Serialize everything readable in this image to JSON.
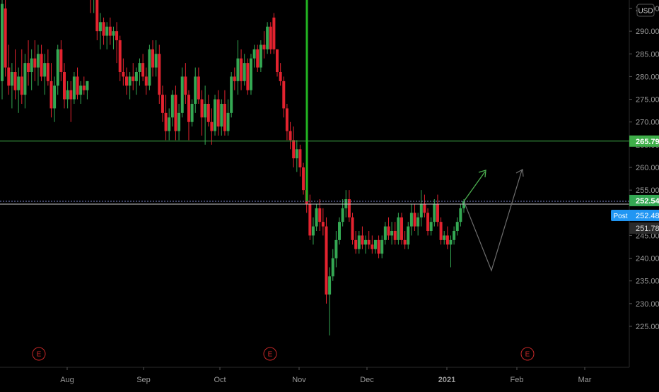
{
  "currency": "USD",
  "chart_data": {
    "type": "candlestick",
    "y_ticks": [
      "225.00",
      "230.00",
      "235.00",
      "240.00",
      "245.00",
      "250.00",
      "255.00",
      "260.00",
      "265.00",
      "270.00",
      "275.00",
      "280.00",
      "285.00",
      "290.00",
      "295.00"
    ],
    "y_range": [
      219.5,
      301.8
    ],
    "x_labels": [
      "Aug",
      "Sep",
      "Oct",
      "Nov",
      "Dec",
      "2021",
      "Feb",
      "Mar"
    ],
    "price_labels": {
      "resistance": "265.79",
      "last": "252.54",
      "post_tag": "Post",
      "post": "252.48",
      "prev": "251.78"
    },
    "earnings_marker": "E",
    "candles": [
      {
        "o": 279,
        "h": 300,
        "l": 275,
        "c": 296
      },
      {
        "o": 295,
        "h": 297,
        "l": 280,
        "c": 282
      },
      {
        "o": 282,
        "h": 287,
        "l": 276,
        "c": 278
      },
      {
        "o": 278,
        "h": 283,
        "l": 273,
        "c": 281
      },
      {
        "o": 281,
        "h": 286,
        "l": 275,
        "c": 277
      },
      {
        "o": 277,
        "h": 282,
        "l": 272,
        "c": 280
      },
      {
        "o": 280,
        "h": 286,
        "l": 274,
        "c": 276
      },
      {
        "o": 276,
        "h": 285,
        "l": 273,
        "c": 283
      },
      {
        "o": 283,
        "h": 288,
        "l": 278,
        "c": 281
      },
      {
        "o": 281,
        "h": 286,
        "l": 277,
        "c": 284
      },
      {
        "o": 284,
        "h": 288,
        "l": 279,
        "c": 282
      },
      {
        "o": 282,
        "h": 287,
        "l": 278,
        "c": 285
      },
      {
        "o": 285,
        "h": 287,
        "l": 279,
        "c": 280
      },
      {
        "o": 280,
        "h": 285,
        "l": 276,
        "c": 283
      },
      {
        "o": 283,
        "h": 286,
        "l": 278,
        "c": 279
      },
      {
        "o": 279,
        "h": 283,
        "l": 271,
        "c": 273
      },
      {
        "o": 273,
        "h": 280,
        "l": 270,
        "c": 278
      },
      {
        "o": 278,
        "h": 287,
        "l": 276,
        "c": 286
      },
      {
        "o": 286,
        "h": 288,
        "l": 279,
        "c": 281
      },
      {
        "o": 281,
        "h": 283,
        "l": 273,
        "c": 275
      },
      {
        "o": 275,
        "h": 279,
        "l": 273,
        "c": 277
      },
      {
        "o": 277,
        "h": 279,
        "l": 270,
        "c": 275
      },
      {
        "o": 275,
        "h": 281,
        "l": 274,
        "c": 280
      },
      {
        "o": 280,
        "h": 282,
        "l": 275,
        "c": 276
      },
      {
        "o": 276,
        "h": 279,
        "l": 274,
        "c": 278
      },
      {
        "o": 278,
        "h": 280,
        "l": 276,
        "c": 277
      },
      {
        "o": 277,
        "h": 279,
        "l": 275,
        "c": 279
      },
      {
        "o": 300,
        "h": 301,
        "l": 294,
        "c": 297
      },
      {
        "o": 297,
        "h": 299,
        "l": 294,
        "c": 298
      },
      {
        "o": 298,
        "h": 299,
        "l": 288,
        "c": 290
      },
      {
        "o": 290,
        "h": 294,
        "l": 286,
        "c": 292
      },
      {
        "o": 292,
        "h": 293,
        "l": 287,
        "c": 289
      },
      {
        "o": 289,
        "h": 292,
        "l": 286,
        "c": 291
      },
      {
        "o": 291,
        "h": 293,
        "l": 287,
        "c": 289
      },
      {
        "o": 289,
        "h": 291,
        "l": 286,
        "c": 290
      },
      {
        "o": 290,
        "h": 292,
        "l": 283,
        "c": 288
      },
      {
        "o": 288,
        "h": 289,
        "l": 279,
        "c": 281
      },
      {
        "o": 281,
        "h": 284,
        "l": 278,
        "c": 280
      },
      {
        "o": 280,
        "h": 282,
        "l": 276,
        "c": 278
      },
      {
        "o": 278,
        "h": 281,
        "l": 275,
        "c": 280
      },
      {
        "o": 280,
        "h": 283,
        "l": 277,
        "c": 279
      },
      {
        "o": 279,
        "h": 282,
        "l": 276,
        "c": 281
      },
      {
        "o": 281,
        "h": 284,
        "l": 278,
        "c": 283
      },
      {
        "o": 283,
        "h": 285,
        "l": 279,
        "c": 280
      },
      {
        "o": 280,
        "h": 282,
        "l": 276,
        "c": 278
      },
      {
        "o": 278,
        "h": 287,
        "l": 277,
        "c": 286
      },
      {
        "o": 286,
        "h": 288,
        "l": 280,
        "c": 282
      },
      {
        "o": 282,
        "h": 288,
        "l": 280,
        "c": 285
      },
      {
        "o": 285,
        "h": 287,
        "l": 274,
        "c": 276
      },
      {
        "o": 276,
        "h": 278,
        "l": 270,
        "c": 272
      },
      {
        "o": 272,
        "h": 276,
        "l": 266,
        "c": 268
      },
      {
        "o": 268,
        "h": 273,
        "l": 266,
        "c": 271
      },
      {
        "o": 271,
        "h": 277,
        "l": 269,
        "c": 276
      },
      {
        "o": 276,
        "h": 278,
        "l": 266,
        "c": 268
      },
      {
        "o": 268,
        "h": 274,
        "l": 266,
        "c": 272
      },
      {
        "o": 272,
        "h": 282,
        "l": 271,
        "c": 280
      },
      {
        "o": 280,
        "h": 283,
        "l": 274,
        "c": 276
      },
      {
        "o": 276,
        "h": 277,
        "l": 266,
        "c": 270
      },
      {
        "o": 270,
        "h": 275,
        "l": 269,
        "c": 274
      },
      {
        "o": 274,
        "h": 282,
        "l": 272,
        "c": 280
      },
      {
        "o": 280,
        "h": 282,
        "l": 274,
        "c": 275
      },
      {
        "o": 275,
        "h": 277,
        "l": 267,
        "c": 271
      },
      {
        "o": 271,
        "h": 278,
        "l": 265,
        "c": 274
      },
      {
        "o": 274,
        "h": 276,
        "l": 269,
        "c": 270
      },
      {
        "o": 270,
        "h": 273,
        "l": 265,
        "c": 268
      },
      {
        "o": 268,
        "h": 276,
        "l": 267,
        "c": 275
      },
      {
        "o": 275,
        "h": 277,
        "l": 267,
        "c": 269
      },
      {
        "o": 269,
        "h": 275,
        "l": 267,
        "c": 274
      },
      {
        "o": 274,
        "h": 277,
        "l": 267,
        "c": 268
      },
      {
        "o": 268,
        "h": 275,
        "l": 267,
        "c": 272
      },
      {
        "o": 272,
        "h": 281,
        "l": 271,
        "c": 280
      },
      {
        "o": 280,
        "h": 282,
        "l": 277,
        "c": 279
      },
      {
        "o": 279,
        "h": 288,
        "l": 276,
        "c": 284
      },
      {
        "o": 284,
        "h": 286,
        "l": 277,
        "c": 279
      },
      {
        "o": 279,
        "h": 285,
        "l": 278,
        "c": 283
      },
      {
        "o": 283,
        "h": 284,
        "l": 276,
        "c": 277
      },
      {
        "o": 277,
        "h": 285,
        "l": 276,
        "c": 284
      },
      {
        "o": 284,
        "h": 287,
        "l": 282,
        "c": 286
      },
      {
        "o": 286,
        "h": 287,
        "l": 281,
        "c": 282
      },
      {
        "o": 282,
        "h": 288,
        "l": 281,
        "c": 287
      },
      {
        "o": 287,
        "h": 290,
        "l": 284,
        "c": 286
      },
      {
        "o": 286,
        "h": 292,
        "l": 285,
        "c": 291
      },
      {
        "o": 291,
        "h": 292,
        "l": 285,
        "c": 286
      },
      {
        "o": 293,
        "h": 294,
        "l": 285,
        "c": 286
      },
      {
        "o": 286,
        "h": 286,
        "l": 280,
        "c": 281
      },
      {
        "o": 281,
        "h": 283,
        "l": 278,
        "c": 279
      },
      {
        "o": 279,
        "h": 280,
        "l": 271,
        "c": 273
      },
      {
        "o": 273,
        "h": 274,
        "l": 266,
        "c": 268
      },
      {
        "o": 268,
        "h": 270,
        "l": 264,
        "c": 266
      },
      {
        "o": 266,
        "h": 269,
        "l": 260,
        "c": 262
      },
      {
        "o": 262,
        "h": 266,
        "l": 259,
        "c": 264
      },
      {
        "o": 264,
        "h": 265,
        "l": 258,
        "c": 260
      },
      {
        "o": 260,
        "h": 261,
        "l": 254,
        "c": 255
      },
      {
        "o": 255,
        "h": 257,
        "l": 250,
        "c": 252
      },
      {
        "o": 252,
        "h": 254,
        "l": 244,
        "c": 245
      },
      {
        "o": 245,
        "h": 249,
        "l": 243,
        "c": 247
      },
      {
        "o": 247,
        "h": 252,
        "l": 246,
        "c": 251
      },
      {
        "o": 251,
        "h": 253,
        "l": 246,
        "c": 248
      },
      {
        "o": 248,
        "h": 251,
        "l": 245,
        "c": 247
      },
      {
        "o": 247,
        "h": 249,
        "l": 230,
        "c": 232
      },
      {
        "o": 232,
        "h": 238,
        "l": 223,
        "c": 236
      },
      {
        "o": 236,
        "h": 242,
        "l": 235,
        "c": 240
      },
      {
        "o": 240,
        "h": 246,
        "l": 238,
        "c": 244
      },
      {
        "o": 244,
        "h": 249,
        "l": 243,
        "c": 248
      },
      {
        "o": 248,
        "h": 253,
        "l": 247,
        "c": 251
      },
      {
        "o": 251,
        "h": 255,
        "l": 249,
        "c": 253
      },
      {
        "o": 253,
        "h": 255,
        "l": 248,
        "c": 249
      },
      {
        "o": 249,
        "h": 250,
        "l": 243,
        "c": 244
      },
      {
        "o": 244,
        "h": 246,
        "l": 241,
        "c": 242
      },
      {
        "o": 242,
        "h": 246,
        "l": 241,
        "c": 245
      },
      {
        "o": 245,
        "h": 247,
        "l": 242,
        "c": 243
      },
      {
        "o": 243,
        "h": 245,
        "l": 241,
        "c": 244
      },
      {
        "o": 244,
        "h": 246,
        "l": 242,
        "c": 243
      },
      {
        "o": 243,
        "h": 245,
        "l": 241,
        "c": 242
      },
      {
        "o": 242,
        "h": 244,
        "l": 241,
        "c": 244
      },
      {
        "o": 244,
        "h": 245,
        "l": 240,
        "c": 241
      },
      {
        "o": 241,
        "h": 245,
        "l": 240,
        "c": 244
      },
      {
        "o": 244,
        "h": 248,
        "l": 243,
        "c": 247
      },
      {
        "o": 247,
        "h": 249,
        "l": 244,
        "c": 245
      },
      {
        "o": 245,
        "h": 248,
        "l": 243,
        "c": 246
      },
      {
        "o": 246,
        "h": 248,
        "l": 243,
        "c": 244
      },
      {
        "o": 244,
        "h": 250,
        "l": 243,
        "c": 249
      },
      {
        "o": 249,
        "h": 250,
        "l": 243,
        "c": 244
      },
      {
        "o": 244,
        "h": 246,
        "l": 242,
        "c": 243
      },
      {
        "o": 243,
        "h": 248,
        "l": 242,
        "c": 247
      },
      {
        "o": 247,
        "h": 252,
        "l": 245,
        "c": 250
      },
      {
        "o": 250,
        "h": 252,
        "l": 246,
        "c": 247
      },
      {
        "o": 247,
        "h": 250,
        "l": 245,
        "c": 249
      },
      {
        "o": 249,
        "h": 255,
        "l": 247,
        "c": 252
      },
      {
        "o": 252,
        "h": 254,
        "l": 249,
        "c": 250
      },
      {
        "o": 250,
        "h": 251,
        "l": 245,
        "c": 246
      },
      {
        "o": 246,
        "h": 249,
        "l": 245,
        "c": 248
      },
      {
        "o": 248,
        "h": 253,
        "l": 247,
        "c": 252
      },
      {
        "o": 252,
        "h": 254,
        "l": 247,
        "c": 248
      },
      {
        "o": 248,
        "h": 249,
        "l": 243,
        "c": 244
      },
      {
        "o": 244,
        "h": 246,
        "l": 243,
        "c": 245
      },
      {
        "o": 245,
        "h": 247,
        "l": 242,
        "c": 243
      },
      {
        "o": 243,
        "h": 245,
        "l": 238,
        "c": 244
      },
      {
        "o": 244,
        "h": 247,
        "l": 243,
        "c": 246
      },
      {
        "o": 246,
        "h": 249,
        "l": 245,
        "c": 248
      },
      {
        "o": 248,
        "h": 252,
        "l": 247,
        "c": 251
      },
      {
        "o": 251,
        "h": 253,
        "l": 250,
        "c": 252.54
      }
    ]
  }
}
